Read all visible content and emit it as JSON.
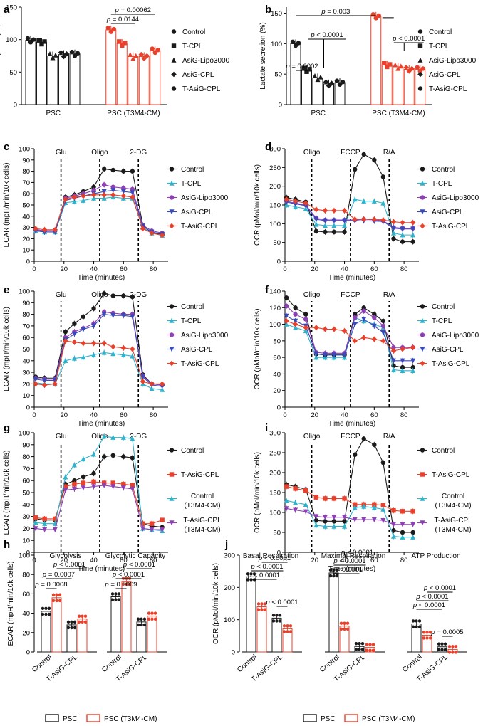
{
  "figure": {
    "legend_bottom_h": {
      "series": [
        "PSC",
        "PSC (T3M4-CM)"
      ]
    },
    "legend_bottom_j": {
      "series": [
        "PSC",
        "PSC (T3M4-CM)"
      ]
    }
  },
  "colors": {
    "black": "#1a1a1a",
    "red": "#e8402a",
    "teal": "#2fb3cc",
    "purple": "#8d3fb5",
    "blue": "#3a49b8",
    "orange": "#e8402a",
    "gray": "#777777"
  },
  "chart_data": [
    {
      "id": "a",
      "panel_label": "a",
      "type": "bar",
      "ylabel": "Glucose uptake (%)",
      "yticks": [
        "0",
        "50",
        "100",
        "150"
      ],
      "ylim": [
        0,
        150
      ],
      "groups": [
        "PSC",
        "PSC (T3M4-CM)"
      ],
      "series": [
        {
          "name": "Control",
          "values": [
            99,
            115
          ]
        },
        {
          "name": "T-CPL",
          "values": [
            96,
            94
          ]
        },
        {
          "name": "AsiG-Lipo3000",
          "values": [
            75,
            74
          ]
        },
        {
          "name": "AsiG-CPL",
          "values": [
            77,
            74
          ]
        },
        {
          "name": "T-AsiG-CPL",
          "values": [
            78,
            83
          ]
        }
      ],
      "legend": [
        "Control",
        "T-CPL",
        "AsiG-Lipo3000",
        "AsiG-CPL",
        "T-AsiG-CPL"
      ],
      "annotations": [
        "p = 0.00062",
        "p = 0.0144"
      ]
    },
    {
      "id": "b",
      "panel_label": "b",
      "type": "bar",
      "ylabel": "Lactate secretion (%)",
      "yticks": [
        "0",
        "50",
        "100",
        "150"
      ],
      "ylim": [
        0,
        160
      ],
      "groups": [
        "PSC",
        "PSC (T3M4-CM)"
      ],
      "series": [
        {
          "name": "Control",
          "values": [
            100,
            145
          ]
        },
        {
          "name": "T-CPL",
          "values": [
            57,
            65
          ]
        },
        {
          "name": "AsiG-Lipo3000",
          "values": [
            44,
            62
          ]
        },
        {
          "name": "AsiG-CPL",
          "values": [
            34,
            58
          ]
        },
        {
          "name": "T-AsiG-CPL",
          "values": [
            36,
            58
          ]
        }
      ],
      "legend": [
        "Control",
        "T-CPL",
        "AsiG-Lipo3000",
        "AsiG-CPL",
        "T-AsiG-CPL"
      ],
      "annotations": [
        "p = 0.003",
        "p < 0.0001",
        "p = 0.0002",
        "p < 0.0001"
      ]
    },
    {
      "id": "c",
      "panel_label": "c",
      "type": "line",
      "xlabel": "Time (minutes)",
      "ylabel": "ECAR (mpH/min/10k cells)",
      "xticks": [
        "0",
        "20",
        "40",
        "60",
        "80"
      ],
      "xlim": [
        0,
        90
      ],
      "yticks": [
        "0",
        "10",
        "20",
        "30",
        "40",
        "50",
        "60",
        "70",
        "80",
        "90",
        "100"
      ],
      "ylim": [
        0,
        100
      ],
      "events": [
        "Glu",
        "Oligo",
        "2-DG"
      ],
      "event_x": [
        18,
        44,
        70
      ],
      "x": [
        1,
        7,
        14,
        21,
        27,
        33,
        40,
        47,
        53,
        60,
        66,
        73,
        79,
        86
      ],
      "series": [
        {
          "name": "Control",
          "values": [
            28,
            27,
            27,
            57,
            59,
            62,
            66,
            82,
            81,
            80,
            80,
            32,
            25,
            24
          ]
        },
        {
          "name": "T-CPL",
          "values": [
            27,
            26,
            26,
            52,
            53,
            54,
            56,
            56,
            57,
            56,
            56,
            30,
            25,
            23
          ]
        },
        {
          "name": "AsiG-Lipo3000",
          "values": [
            28,
            27,
            27,
            56,
            58,
            60,
            63,
            68,
            66,
            65,
            64,
            32,
            27,
            25
          ]
        },
        {
          "name": "AsiG-CPL",
          "values": [
            27,
            26,
            26,
            54,
            56,
            58,
            60,
            62,
            63,
            62,
            61,
            31,
            26,
            24
          ]
        },
        {
          "name": "T-AsiG-CPL",
          "values": [
            29,
            28,
            28,
            55,
            57,
            58,
            59,
            59,
            59,
            58,
            57,
            29,
            25,
            23
          ]
        }
      ],
      "legend": [
        "Control",
        "T-CPL",
        "AsiG-Lipo3000",
        "AsiG-CPL",
        "T-AsiG-CPL"
      ]
    },
    {
      "id": "d",
      "panel_label": "d",
      "type": "line",
      "xlabel": "Time (minutes)",
      "ylabel": "OCR (pMol/min/10k cells)",
      "xticks": [
        "0",
        "20",
        "40",
        "60",
        "80"
      ],
      "xlim": [
        0,
        90
      ],
      "yticks": [
        "0",
        "50",
        "100",
        "150",
        "200",
        "250",
        "300"
      ],
      "ylim": [
        0,
        300
      ],
      "events": [
        "Oligo",
        "FCCP",
        "R/A"
      ],
      "event_x": [
        18,
        44,
        70
      ],
      "x": [
        1,
        7,
        14,
        21,
        27,
        33,
        40,
        47,
        53,
        60,
        66,
        73,
        79,
        86
      ],
      "series": [
        {
          "name": "Control",
          "values": [
            170,
            165,
            158,
            80,
            78,
            78,
            78,
            245,
            285,
            270,
            225,
            60,
            52,
            52
          ]
        },
        {
          "name": "T-CPL",
          "values": [
            150,
            145,
            140,
            98,
            95,
            95,
            95,
            165,
            160,
            160,
            155,
            75,
            70,
            70
          ]
        },
        {
          "name": "AsiG-Lipo3000",
          "values": [
            160,
            155,
            150,
            115,
            110,
            110,
            110,
            110,
            112,
            110,
            108,
            90,
            88,
            88
          ]
        },
        {
          "name": "AsiG-CPL",
          "values": [
            158,
            153,
            148,
            112,
            108,
            108,
            108,
            108,
            108,
            107,
            106,
            88,
            86,
            86
          ]
        },
        {
          "name": "T-AsiG-CPL",
          "values": [
            165,
            160,
            155,
            138,
            135,
            135,
            135,
            112,
            112,
            112,
            110,
            105,
            103,
            103
          ]
        }
      ],
      "legend": [
        "Control",
        "T-CPL",
        "AsiG-Lipo3000",
        "AsiG-CPL",
        "T-AsiG-CPL"
      ]
    },
    {
      "id": "e",
      "panel_label": "e",
      "type": "line",
      "xlabel": "Time (minutes)",
      "ylabel": "ECAR (mpH/min/10k cells)",
      "xticks": [
        "0",
        "20",
        "40",
        "60",
        "80"
      ],
      "xlim": [
        0,
        90
      ],
      "yticks": [
        "0",
        "10",
        "20",
        "30",
        "40",
        "50",
        "60",
        "70",
        "80",
        "90",
        "100"
      ],
      "ylim": [
        0,
        100
      ],
      "events": [
        "Glu",
        "Oligo",
        "2-DG"
      ],
      "event_x": [
        18,
        44,
        70
      ],
      "x": [
        1,
        7,
        14,
        21,
        27,
        33,
        40,
        47,
        53,
        60,
        66,
        73,
        79,
        86
      ],
      "series": [
        {
          "name": "Control",
          "values": [
            26,
            25,
            25,
            65,
            72,
            78,
            85,
            98,
            96,
            96,
            95,
            28,
            20,
            19
          ]
        },
        {
          "name": "T-CPL",
          "values": [
            21,
            20,
            20,
            40,
            42,
            43,
            45,
            47,
            46,
            45,
            44,
            20,
            16,
            15
          ]
        },
        {
          "name": "AsiG-Lipo3000",
          "values": [
            25,
            24,
            24,
            60,
            65,
            68,
            72,
            82,
            81,
            80,
            80,
            27,
            20,
            19
          ]
        },
        {
          "name": "AsiG-CPL",
          "values": [
            24,
            23,
            23,
            58,
            63,
            67,
            70,
            80,
            79,
            79,
            78,
            26,
            19,
            18
          ]
        },
        {
          "name": "T-AsiG-CPL",
          "values": [
            20,
            19,
            20,
            57,
            56,
            55,
            55,
            55,
            52,
            51,
            50,
            22,
            20,
            20
          ]
        }
      ],
      "legend": [
        "Control",
        "T-CPL",
        "AsiG-Lipo3000",
        "AsiG-CPL",
        "T-AsiG-CPL"
      ]
    },
    {
      "id": "f",
      "panel_label": "f",
      "type": "line",
      "xlabel": "Time (minutes)",
      "ylabel": "OCR (pMol/min/10k cells)",
      "xticks": [
        "0",
        "20",
        "40",
        "60",
        "80"
      ],
      "xlim": [
        0,
        90
      ],
      "yticks": [
        "0",
        "20",
        "40",
        "60",
        "80",
        "100",
        "120",
        "140"
      ],
      "ylim": [
        0,
        140
      ],
      "events": [
        "Oligo",
        "FCCP",
        "R/A"
      ],
      "event_x": [
        18,
        44,
        70
      ],
      "x": [
        1,
        7,
        14,
        21,
        27,
        33,
        40,
        47,
        53,
        60,
        66,
        73,
        79,
        86
      ],
      "series": [
        {
          "name": "Control",
          "values": [
            132,
            120,
            112,
            64,
            63,
            63,
            63,
            112,
            120,
            112,
            104,
            50,
            48,
            48
          ]
        },
        {
          "name": "T-CPL",
          "values": [
            100,
            96,
            92,
            60,
            60,
            60,
            60,
            108,
            104,
            100,
            96,
            45,
            44,
            44
          ]
        },
        {
          "name": "AsiG-Lipo3000",
          "values": [
            122,
            112,
            106,
            66,
            65,
            65,
            65,
            108,
            116,
            108,
            98,
            72,
            72,
            72
          ]
        },
        {
          "name": "AsiG-CPL",
          "values": [
            110,
            104,
            98,
            64,
            63,
            63,
            63,
            100,
            106,
            98,
            90,
            56,
            56,
            56
          ]
        },
        {
          "name": "T-AsiG-CPL",
          "values": [
            104,
            100,
            96,
            96,
            94,
            94,
            92,
            80,
            84,
            82,
            80,
            68,
            70,
            72
          ]
        }
      ],
      "legend": [
        "Control",
        "T-CPL",
        "AsiG-Lipo3000",
        "AsiG-CPL",
        "T-AsiG-CPL"
      ]
    },
    {
      "id": "g",
      "panel_label": "g",
      "type": "line",
      "xlabel": "Time (minutes)",
      "ylabel": "ECAR (mpH/min/10k cells)",
      "xticks": [
        "0",
        "20",
        "40",
        "60",
        "80"
      ],
      "xlim": [
        0,
        90
      ],
      "yticks": [
        "0",
        "10",
        "20",
        "30",
        "40",
        "50",
        "60",
        "70",
        "80",
        "90",
        "100"
      ],
      "ylim": [
        0,
        100
      ],
      "events": [
        "Glu",
        "Oligo",
        "2-DG"
      ],
      "event_x": [
        18,
        44,
        70
      ],
      "x": [
        1,
        7,
        14,
        21,
        27,
        33,
        40,
        47,
        53,
        60,
        66,
        73,
        79,
        86
      ],
      "series": [
        {
          "name": "Control",
          "values": [
            28,
            27,
            27,
            57,
            60,
            63,
            66,
            80,
            81,
            80,
            79,
            24,
            22,
            21
          ]
        },
        {
          "name": "T-AsiG-CPL",
          "values": [
            29,
            28,
            28,
            55,
            57,
            58,
            59,
            58,
            58,
            57,
            56,
            24,
            24,
            27
          ]
        },
        {
          "name": "Control (T3M4-CM)",
          "values": [
            25,
            24,
            24,
            63,
            73,
            78,
            82,
            97,
            96,
            96,
            95,
            20,
            19,
            18
          ]
        },
        {
          "name": "T-AsiG-CPL (T3M4-CM)",
          "values": [
            20,
            19,
            19,
            52,
            53,
            54,
            55,
            56,
            55,
            54,
            53,
            20,
            19,
            19
          ]
        }
      ],
      "legend": [
        "Control",
        "T-AsiG-CPL",
        "Control\n(T3M4-CM)",
        "T-AsiG-CPL\n(T3M4-CM)"
      ]
    },
    {
      "id": "i",
      "panel_label": "i",
      "type": "line",
      "xlabel": "Time (minutes)",
      "ylabel": "OCR (pMol/min/10k cells)",
      "xticks": [
        "0",
        "20",
        "40",
        "60",
        "80"
      ],
      "xlim": [
        0,
        90
      ],
      "yticks": [
        "0",
        "50",
        "100",
        "150",
        "200",
        "250",
        "300"
      ],
      "ylim": [
        0,
        300
      ],
      "events": [
        "Oligo",
        "FCCP",
        "R/A"
      ],
      "event_x": [
        18,
        44,
        70
      ],
      "x": [
        1,
        7,
        14,
        21,
        27,
        33,
        40,
        47,
        53,
        60,
        66,
        73,
        79,
        86
      ],
      "series": [
        {
          "name": "Control",
          "values": [
            170,
            165,
            158,
            80,
            78,
            78,
            78,
            245,
            285,
            270,
            225,
            55,
            50,
            50
          ]
        },
        {
          "name": "T-AsiG-CPL",
          "values": [
            165,
            160,
            155,
            138,
            135,
            135,
            135,
            120,
            120,
            120,
            118,
            105,
            103,
            103
          ]
        },
        {
          "name": "Control (T3M4-CM)",
          "values": [
            130,
            125,
            120,
            68,
            65,
            65,
            65,
            112,
            115,
            112,
            108,
            40,
            38,
            38
          ]
        },
        {
          "name": "T-AsiG-CPL (T3M4-CM)",
          "values": [
            110,
            106,
            102,
            90,
            88,
            88,
            88,
            82,
            82,
            82,
            80,
            70,
            70,
            70
          ]
        }
      ],
      "legend": [
        "Control",
        "T-AsiG-CPL",
        "Control\n(T3M4-CM)",
        "T-AsiG-CPL\n(T3M4-CM)"
      ]
    },
    {
      "id": "h",
      "panel_label": "h",
      "type": "bar",
      "ylabel": "ECAR (mpH/min/10k cells)",
      "yticks": [
        "0",
        "20",
        "40",
        "60",
        "80",
        "100"
      ],
      "ylim": [
        0,
        100
      ],
      "subtitles": [
        "Glycolysis",
        "Glycolytic Capacity"
      ],
      "categories": [
        "Control",
        "T-AsiG-CPL"
      ],
      "series": [
        {
          "name": "PSC",
          "values": [
            [
              42,
              28
            ],
            [
              57,
              31
            ]
          ]
        },
        {
          "name": "PSC (T3M4-CM)",
          "values": [
            [
              56,
              34
            ],
            [
              73,
              37
            ]
          ]
        }
      ],
      "annotations": [
        [
          "p < 0.0001",
          "p = 0.0007",
          "p = 0.0008"
        ],
        [
          "p < 0.0001",
          "p < 0.0001",
          "p = 0.0009"
        ]
      ]
    },
    {
      "id": "j",
      "panel_label": "j",
      "type": "bar",
      "ylabel": "OCR (pMol/min/10k cells)",
      "yticks": [
        "0",
        "100",
        "200",
        "300"
      ],
      "ylim": [
        0,
        300
      ],
      "subtitles": [
        "Basal Respiration",
        "Maximal Respiration",
        "ATP Production"
      ],
      "categories": [
        "Control",
        "T-AsiG-CPL"
      ],
      "series": [
        {
          "name": "PSC",
          "values": [
            [
              233,
              105
            ],
            [
              245,
              17
            ],
            [
              87,
              16
            ]
          ]
        },
        {
          "name": "PSC (T3M4-CM)",
          "values": [
            [
              140,
              72
            ],
            [
              80,
              14
            ],
            [
              52,
              8
            ]
          ]
        }
      ],
      "annotations": [
        [
          "p < 0.0001",
          "p < 0.0001",
          "p < 0.0001",
          "p < 0.0001"
        ],
        [
          "p < 0.0001",
          "p < 0.0001",
          "p < 0.0001"
        ],
        [
          "p < 0.0001",
          "p < 0.0001",
          "p < 0.0001",
          "p = 0.0005"
        ]
      ]
    }
  ]
}
